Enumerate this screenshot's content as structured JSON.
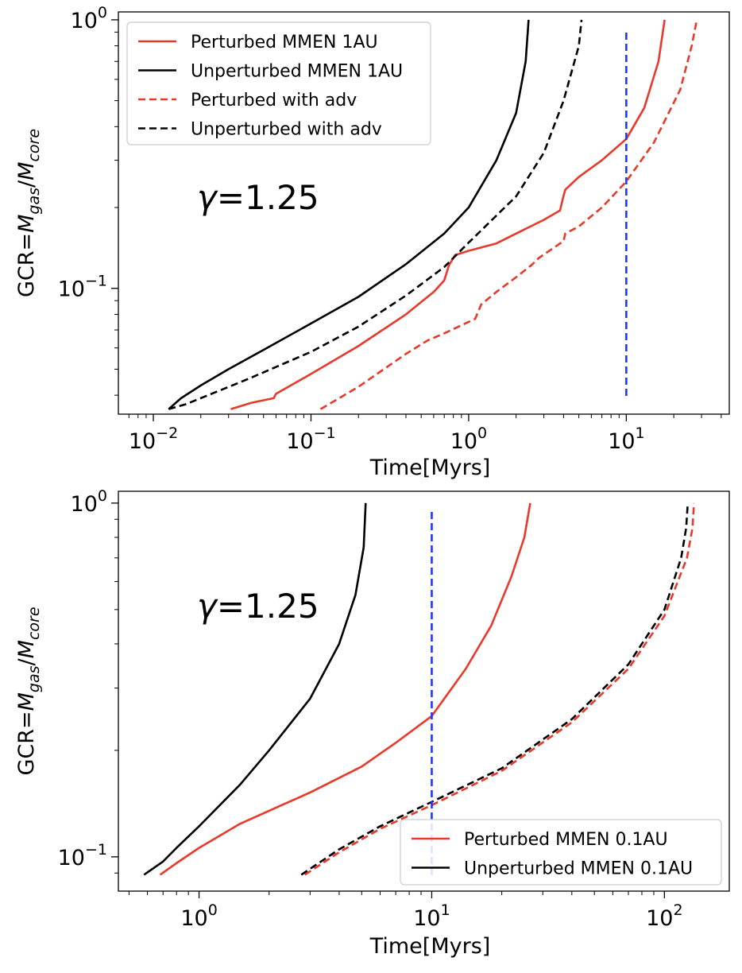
{
  "chart_data": [
    {
      "type": "line",
      "xlabel": "Time[Myrs]",
      "ylabel": "GCR=M_gas/M_core",
      "xscale": "log",
      "yscale": "log",
      "xlim": [
        0.006,
        45
      ],
      "ylim": [
        0.034,
        1.07
      ],
      "xticks": [
        {
          "value": 0.01,
          "base": "10",
          "exp": "−2"
        },
        {
          "value": 0.1,
          "base": "10",
          "exp": "−1"
        },
        {
          "value": 1,
          "base": "10",
          "exp": "0"
        },
        {
          "value": 10,
          "base": "10",
          "exp": "1"
        }
      ],
      "yticks": [
        {
          "value": 0.1,
          "base": "10",
          "exp": "−1"
        },
        {
          "value": 1,
          "base": "10",
          "exp": "0"
        }
      ],
      "annotation": "γ=1.25",
      "vline": {
        "x": 10,
        "color": "#1f35ff"
      },
      "legend_position": "upper left",
      "series": [
        {
          "name": "Perturbed MMEN 1AU",
          "color": "#e8392b",
          "dash": "solid",
          "points": [
            [
              0.031,
              0.0355
            ],
            [
              0.042,
              0.0375
            ],
            [
              0.058,
              0.039
            ],
            [
              0.06,
              0.0405
            ],
            [
              0.1,
              0.048
            ],
            [
              0.2,
              0.061
            ],
            [
              0.4,
              0.08
            ],
            [
              0.6,
              0.097
            ],
            [
              0.7,
              0.107
            ],
            [
              0.75,
              0.122
            ],
            [
              0.82,
              0.133
            ],
            [
              1.0,
              0.138
            ],
            [
              1.5,
              0.147
            ],
            [
              2.0,
              0.16
            ],
            [
              3.0,
              0.18
            ],
            [
              3.8,
              0.195
            ],
            [
              3.95,
              0.215
            ],
            [
              4.1,
              0.233
            ],
            [
              5.0,
              0.26
            ],
            [
              7.0,
              0.3
            ],
            [
              10.0,
              0.36
            ],
            [
              13.0,
              0.47
            ],
            [
              16.0,
              0.7
            ],
            [
              17.5,
              1.0
            ]
          ]
        },
        {
          "name": "Unperturbed MMEN 1AU",
          "color": "#000000",
          "dash": "solid",
          "points": [
            [
              0.0125,
              0.0355
            ],
            [
              0.015,
              0.039
            ],
            [
              0.02,
              0.0435
            ],
            [
              0.03,
              0.05
            ],
            [
              0.05,
              0.059
            ],
            [
              0.1,
              0.074
            ],
            [
              0.2,
              0.093
            ],
            [
              0.4,
              0.123
            ],
            [
              0.7,
              0.16
            ],
            [
              1.0,
              0.2
            ],
            [
              1.5,
              0.3
            ],
            [
              2.0,
              0.45
            ],
            [
              2.3,
              0.7
            ],
            [
              2.4,
              1.0
            ]
          ]
        },
        {
          "name": "Perturbed with adv",
          "color": "#e8392b",
          "dash": "dashed",
          "points": [
            [
              0.115,
              0.0355
            ],
            [
              0.2,
              0.043
            ],
            [
              0.4,
              0.057
            ],
            [
              0.55,
              0.064
            ],
            [
              0.7,
              0.068
            ],
            [
              1.1,
              0.077
            ],
            [
              1.2,
              0.087
            ],
            [
              1.5,
              0.097
            ],
            [
              2.0,
              0.11
            ],
            [
              2.5,
              0.122
            ],
            [
              2.8,
              0.13
            ],
            [
              4.0,
              0.15
            ],
            [
              4.1,
              0.16
            ],
            [
              5.0,
              0.17
            ],
            [
              7.0,
              0.2
            ],
            [
              10.0,
              0.25
            ],
            [
              15.0,
              0.35
            ],
            [
              22.0,
              0.55
            ],
            [
              26.0,
              0.8
            ],
            [
              28.0,
              1.0
            ]
          ]
        },
        {
          "name": "Unperturbed with adv",
          "color": "#000000",
          "dash": "dashed",
          "points": [
            [
              0.0125,
              0.0355
            ],
            [
              0.016,
              0.037
            ],
            [
              0.02,
              0.039
            ],
            [
              0.04,
              0.046
            ],
            [
              0.1,
              0.058
            ],
            [
              0.2,
              0.072
            ],
            [
              0.4,
              0.094
            ],
            [
              0.7,
              0.12
            ],
            [
              1.0,
              0.148
            ],
            [
              2.0,
              0.22
            ],
            [
              3.0,
              0.32
            ],
            [
              4.0,
              0.5
            ],
            [
              5.0,
              0.8
            ],
            [
              5.2,
              1.0
            ]
          ]
        }
      ]
    },
    {
      "type": "line",
      "xlabel": "Time[Myrs]",
      "ylabel": "GCR=M_gas/M_core",
      "xscale": "log",
      "yscale": "log",
      "xlim": [
        0.45,
        190
      ],
      "ylim": [
        0.08,
        1.08
      ],
      "xticks": [
        {
          "value": 1,
          "base": "10",
          "exp": "0"
        },
        {
          "value": 10,
          "base": "10",
          "exp": "1"
        },
        {
          "value": 100,
          "base": "10",
          "exp": "2"
        }
      ],
      "yticks": [
        {
          "value": 0.1,
          "base": "10",
          "exp": "−1"
        },
        {
          "value": 1,
          "base": "10",
          "exp": "0"
        }
      ],
      "annotation": "γ=1.25",
      "vline": {
        "x": 10,
        "color": "#1f35ff"
      },
      "legend_position": "lower right",
      "series": [
        {
          "name": "Perturbed MMEN 0.1AU",
          "color": "#e8392b",
          "dash": "solid",
          "points": [
            [
              0.68,
              0.089
            ],
            [
              0.8,
              0.096
            ],
            [
              1.0,
              0.106
            ],
            [
              1.5,
              0.124
            ],
            [
              2.0,
              0.135
            ],
            [
              3.0,
              0.152
            ],
            [
              5.0,
              0.18
            ],
            [
              7.0,
              0.21
            ],
            [
              10.0,
              0.25
            ],
            [
              14.0,
              0.34
            ],
            [
              18.0,
              0.45
            ],
            [
              22.0,
              0.62
            ],
            [
              25.0,
              0.8
            ],
            [
              26.5,
              1.0
            ]
          ]
        },
        {
          "name": "Unperturbed MMEN 0.1AU",
          "color": "#000000",
          "dash": "solid",
          "points": [
            [
              0.58,
              0.089
            ],
            [
              0.7,
              0.097
            ],
            [
              0.8,
              0.106
            ],
            [
              1.0,
              0.122
            ],
            [
              1.5,
              0.16
            ],
            [
              2.0,
              0.2
            ],
            [
              3.0,
              0.28
            ],
            [
              4.0,
              0.4
            ],
            [
              4.7,
              0.55
            ],
            [
              5.1,
              0.75
            ],
            [
              5.2,
              1.0
            ]
          ]
        },
        {
          "name": "Perturbed with adv",
          "color": "#e8392b",
          "dash": "dashed",
          "in_legend": false,
          "points": [
            [
              2.85,
              0.089
            ],
            [
              4.0,
              0.103
            ],
            [
              6.0,
              0.12
            ],
            [
              10.0,
              0.14
            ],
            [
              20.0,
              0.175
            ],
            [
              40.0,
              0.24
            ],
            [
              70.0,
              0.34
            ],
            [
              100.0,
              0.48
            ],
            [
              125.0,
              0.7
            ],
            [
              132.0,
              0.85
            ],
            [
              134.0,
              1.0
            ]
          ]
        },
        {
          "name": "Unperturbed with adv",
          "color": "#000000",
          "dash": "dashed",
          "in_legend": false,
          "points": [
            [
              2.75,
              0.089
            ],
            [
              4.0,
              0.105
            ],
            [
              6.0,
              0.122
            ],
            [
              10.0,
              0.143
            ],
            [
              20.0,
              0.178
            ],
            [
              40.0,
              0.245
            ],
            [
              70.0,
              0.35
            ],
            [
              100.0,
              0.5
            ],
            [
              118.0,
              0.7
            ],
            [
              124.0,
              0.85
            ],
            [
              126.0,
              1.0
            ]
          ]
        }
      ]
    }
  ]
}
